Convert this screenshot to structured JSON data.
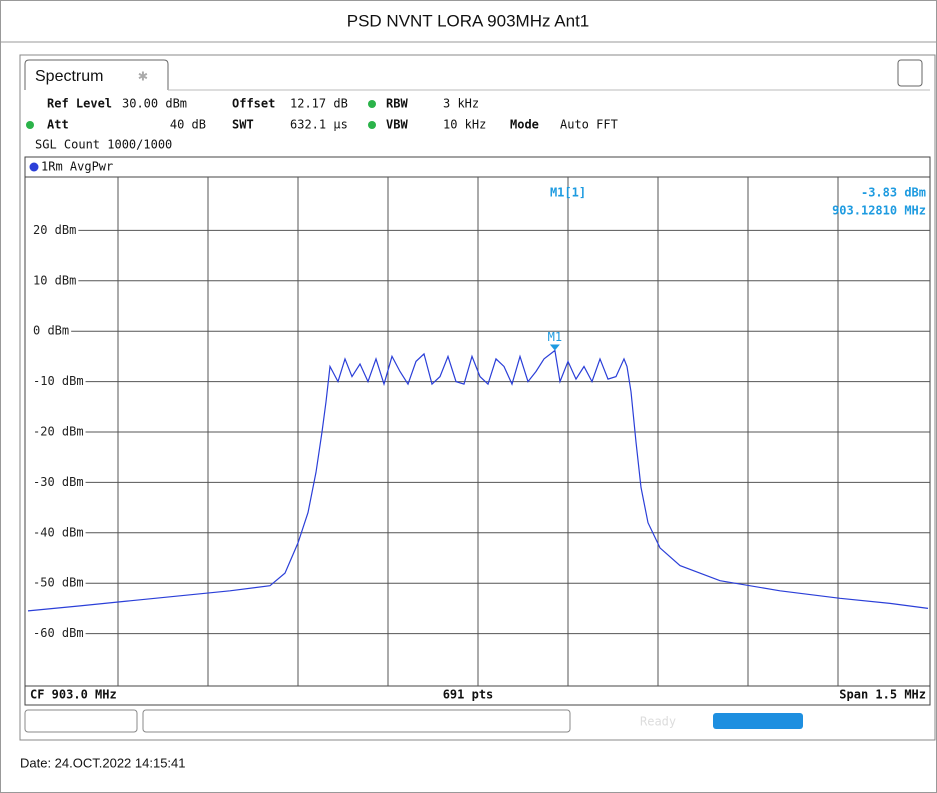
{
  "title": "PSD NVNT LORA 903MHz Ant1",
  "tab": "Spectrum",
  "settings": {
    "ref_level_label": "Ref Level",
    "ref_level": "30.00 dBm",
    "offset_label": "Offset",
    "offset": "12.17 dB",
    "rbw_label": "RBW",
    "rbw": "3 kHz",
    "att_label": "Att",
    "att": "40 dB",
    "swt_label": "SWT",
    "swt": "632.1 µs",
    "vbw_label": "VBW",
    "vbw": "10 kHz",
    "mode_label": "Mode",
    "mode": "Auto FFT",
    "count": "SGL Count 1000/1000"
  },
  "footer": {
    "cf": "CF 903.0 MHz",
    "pts": "691 pts",
    "span": "Span 1.5 MHz",
    "status": "Ready"
  },
  "date": "Date: 24.OCT.2022  14:15:41",
  "chart_data": {
    "type": "line",
    "xlim": [
      902.25,
      903.75
    ],
    "ylim": [
      -70,
      30
    ],
    "yticks": [
      {
        "value": 20,
        "label": "20 dBm"
      },
      {
        "value": 10,
        "label": "10 dBm"
      },
      {
        "value": 0,
        "label": "0 dBm"
      },
      {
        "value": -10,
        "label": "-10 dBm"
      },
      {
        "value": -20,
        "label": "-20 dBm"
      },
      {
        "value": -30,
        "label": "-30 dBm"
      },
      {
        "value": -40,
        "label": "-40 dBm"
      },
      {
        "value": -50,
        "label": "-50 dBm"
      },
      {
        "value": -60,
        "label": "-60 dBm"
      }
    ],
    "grid": true,
    "x": [
      902.25,
      902.3367,
      902.42,
      902.5033,
      902.5867,
      902.6533,
      902.6783,
      902.7,
      902.7167,
      902.73,
      902.74,
      902.7467,
      902.7533,
      902.7667,
      902.7783,
      902.79,
      902.8033,
      902.8167,
      902.83,
      902.8433,
      902.8567,
      902.87,
      902.8833,
      902.8967,
      902.91,
      902.9233,
      902.9367,
      902.95,
      902.9633,
      902.9767,
      902.99,
      903.0033,
      903.0167,
      903.03,
      903.0433,
      903.0567,
      903.07,
      903.0833,
      903.0967,
      903.11,
      903.1281,
      903.1367,
      903.15,
      903.1633,
      903.1767,
      903.19,
      903.2033,
      903.2167,
      903.23,
      903.2433,
      903.2483,
      903.255,
      903.2633,
      903.2717,
      903.2833,
      903.3033,
      903.3367,
      903.4033,
      903.5033,
      903.6033,
      903.6867,
      903.75
    ],
    "series": [
      {
        "name": "1Rm AvgPwr",
        "color": "#2b3fd8",
        "values": [
          -55.5,
          -54.5,
          -53.5,
          -52.5,
          -51.5,
          -50.5,
          -48,
          -42,
          -36,
          -28,
          -20,
          -14,
          -7,
          -10,
          -5.5,
          -9,
          -6.5,
          -10,
          -5.5,
          -10.5,
          -5,
          -8,
          -10.5,
          -6,
          -4.5,
          -10.5,
          -9,
          -5,
          -10,
          -10.5,
          -5,
          -9,
          -10.5,
          -5.5,
          -7,
          -10.5,
          -5,
          -10,
          -8,
          -5.5,
          -3.83,
          -10,
          -6,
          -9.5,
          -7,
          -10,
          -5.5,
          -9.5,
          -9,
          -5.5,
          -7,
          -12,
          -22,
          -31,
          -38,
          -43,
          -46.5,
          -49.5,
          -51.5,
          -53,
          -54,
          -55
        ]
      }
    ],
    "marker": {
      "label": "M1[1]",
      "name": "M1",
      "x": 903.1281,
      "y": -3.83,
      "y_label": "-3.83 dBm",
      "x_label": "903.12810 MHz",
      "color": "#1e9be0"
    }
  }
}
